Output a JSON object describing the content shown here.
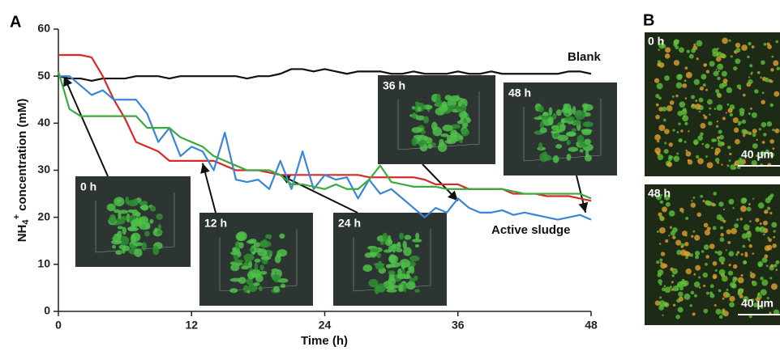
{
  "chart_data": {
    "type": "line",
    "panel_label": "A",
    "x": [
      0,
      1,
      2,
      3,
      4,
      5,
      6,
      7,
      8,
      9,
      10,
      11,
      12,
      13,
      14,
      15,
      16,
      17,
      18,
      19,
      20,
      21,
      22,
      23,
      24,
      25,
      26,
      27,
      28,
      29,
      30,
      31,
      32,
      33,
      34,
      35,
      36,
      37,
      38,
      39,
      40,
      41,
      42,
      43,
      44,
      45,
      46,
      47,
      48
    ],
    "series": [
      {
        "name": "Blank",
        "color": "#111111",
        "values": [
          50,
          49.5,
          49.5,
          49,
          49.5,
          49.5,
          49.5,
          50,
          50,
          50,
          49.5,
          50,
          50,
          50,
          50,
          50,
          50,
          49.5,
          50,
          50,
          50.5,
          51.5,
          51.5,
          51,
          51.5,
          51,
          50.5,
          51,
          51,
          51,
          50.5,
          50.5,
          51,
          50.5,
          50.5,
          50.5,
          51,
          50.5,
          50.5,
          51,
          50.5,
          50.5,
          50.5,
          50.5,
          50.5,
          50.5,
          51,
          51,
          50.5
        ]
      },
      {
        "color": "#d62a2a",
        "values": [
          54.5,
          54.5,
          54.5,
          54,
          50,
          45,
          41,
          36,
          35,
          34,
          32,
          32,
          32,
          32,
          32,
          31,
          30,
          30,
          30,
          29.5,
          29,
          29,
          29,
          29,
          29,
          29,
          29,
          29,
          28.5,
          28.5,
          28.5,
          28.5,
          28.5,
          28,
          27,
          27,
          27,
          26,
          26,
          26,
          26,
          25,
          25,
          25,
          24.5,
          24.5,
          24.5,
          24,
          23.5
        ]
      },
      {
        "color": "#3a86d4",
        "values": [
          50,
          50,
          48,
          46,
          47,
          45,
          45,
          45,
          42,
          36,
          39,
          33,
          35,
          34,
          30,
          38,
          28,
          27.5,
          28,
          26,
          32,
          26,
          34,
          26,
          29,
          28,
          28.5,
          24,
          28,
          25,
          26,
          24,
          22,
          20,
          22,
          21,
          24,
          22,
          21,
          21,
          21.5,
          20.5,
          21,
          20.5,
          20,
          19.5,
          20,
          20.5,
          19.5
        ]
      },
      {
        "color": "#3aaa3a",
        "values": [
          51,
          43,
          41.5,
          41.5,
          41.5,
          41.5,
          41.5,
          41.5,
          39,
          39,
          39,
          37,
          36,
          35,
          33,
          32,
          31,
          30,
          30,
          30,
          29,
          27,
          27,
          26.5,
          26,
          27,
          26,
          26,
          28,
          31,
          27.5,
          27,
          26.5,
          26.5,
          26.5,
          26,
          26,
          26,
          26,
          26,
          26,
          25.5,
          25,
          25,
          25,
          25,
          25,
          25,
          24
        ]
      }
    ],
    "xlim": [
      0,
      48
    ],
    "ylim": [
      0,
      60
    ],
    "xticks": [
      0,
      12,
      24,
      36,
      48
    ],
    "yticks": [
      0,
      10,
      20,
      30,
      40,
      50,
      60
    ],
    "xlabel": "Time (h)",
    "ylabel": {
      "base": "NH",
      "sub": "4",
      "sup": "+",
      "rest": " concentration (mM)"
    },
    "annotation": "Active sludge",
    "insets": [
      "0 h",
      "12 h",
      "24 h",
      "36 h",
      "48 h"
    ]
  },
  "panel_b": {
    "label": "B",
    "images": [
      {
        "label": "0 h",
        "scale": "40 µm"
      },
      {
        "label": "48 h",
        "scale": "40 µm"
      }
    ]
  }
}
